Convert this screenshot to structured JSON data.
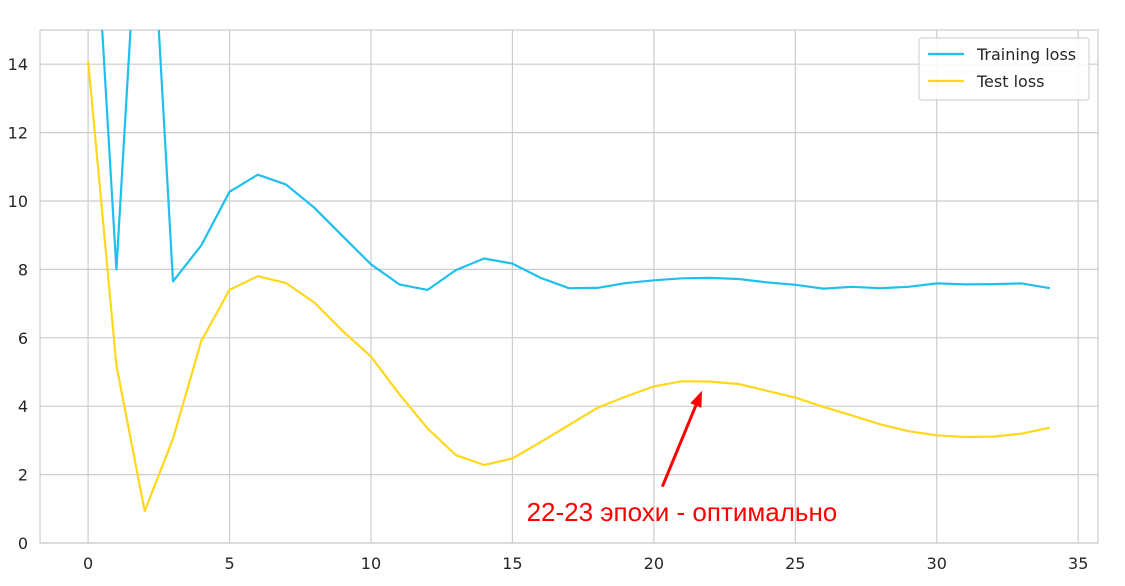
{
  "chart_data": {
    "type": "line",
    "title": "",
    "xlabel": "",
    "ylabel": "",
    "xlim": [
      -1.7,
      35.7
    ],
    "ylim": [
      0,
      15
    ],
    "grid": true,
    "legend_placement": "top-right",
    "x_ticks": [
      0,
      5,
      10,
      15,
      20,
      25,
      30,
      35
    ],
    "y_ticks": [
      0,
      2,
      4,
      6,
      8,
      10,
      12,
      14
    ],
    "x": [
      0,
      1,
      2,
      3,
      4,
      5,
      6,
      7,
      8,
      9,
      10,
      11,
      12,
      13,
      14,
      15,
      16,
      17,
      18,
      19,
      20,
      21,
      22,
      23,
      24,
      25,
      26,
      27,
      28,
      29,
      30,
      31,
      32,
      33,
      34
    ],
    "series": [
      {
        "name": "Training loss",
        "color": "#1fbfef",
        "points": [
          [
            0.3,
            16.0
          ],
          [
            0.5,
            15.0
          ],
          [
            1,
            8.0
          ],
          [
            1.5,
            15.0
          ],
          [
            1.6,
            16.0
          ],
          [
            2.3,
            16.0
          ],
          [
            2.5,
            15.0
          ],
          [
            3,
            7.65
          ],
          [
            4,
            8.7
          ],
          [
            5,
            10.27
          ],
          [
            6,
            10.77
          ],
          [
            7,
            10.48
          ],
          [
            8,
            9.8
          ],
          [
            9,
            8.97
          ],
          [
            10,
            8.15
          ],
          [
            11,
            7.56
          ],
          [
            12,
            7.4
          ],
          [
            13,
            7.98
          ],
          [
            14,
            8.32
          ],
          [
            15,
            8.17
          ],
          [
            16,
            7.75
          ],
          [
            17,
            7.45
          ],
          [
            18,
            7.46
          ],
          [
            19,
            7.6
          ],
          [
            20,
            7.68
          ],
          [
            21,
            7.74
          ],
          [
            22,
            7.75
          ],
          [
            23,
            7.72
          ],
          [
            24,
            7.62
          ],
          [
            25,
            7.55
          ],
          [
            26,
            7.44
          ],
          [
            27,
            7.49
          ],
          [
            28,
            7.45
          ],
          [
            29,
            7.49
          ],
          [
            30,
            7.59
          ],
          [
            31,
            7.56
          ],
          [
            32,
            7.57
          ],
          [
            33,
            7.59
          ],
          [
            34,
            7.45
          ]
        ]
      },
      {
        "name": "Test loss",
        "color": "#ffd81c",
        "points": [
          [
            0,
            14.1
          ],
          [
            1,
            5.2
          ],
          [
            2,
            0.93
          ],
          [
            3,
            3.05
          ],
          [
            4,
            5.9
          ],
          [
            5,
            7.4
          ],
          [
            6,
            7.8
          ],
          [
            7,
            7.6
          ],
          [
            8,
            7.03
          ],
          [
            9,
            6.2
          ],
          [
            10,
            5.45
          ],
          [
            11,
            4.35
          ],
          [
            12,
            3.35
          ],
          [
            13,
            2.57
          ],
          [
            14,
            2.28
          ],
          [
            15,
            2.47
          ],
          [
            16,
            2.95
          ],
          [
            17,
            3.45
          ],
          [
            18,
            3.95
          ],
          [
            19,
            4.28
          ],
          [
            20,
            4.58
          ],
          [
            21,
            4.73
          ],
          [
            22,
            4.72
          ],
          [
            23,
            4.65
          ],
          [
            24,
            4.45
          ],
          [
            25,
            4.25
          ],
          [
            26,
            3.98
          ],
          [
            27,
            3.73
          ],
          [
            28,
            3.47
          ],
          [
            29,
            3.27
          ],
          [
            30,
            3.15
          ],
          [
            31,
            3.1
          ],
          [
            32,
            3.11
          ],
          [
            33,
            3.2
          ],
          [
            34,
            3.37
          ]
        ]
      }
    ],
    "annotation": {
      "text": "22-23 эпохи - оптимально",
      "color": "#ff0000",
      "text_x": 15.5,
      "text_y": 0.9,
      "arrow_from": [
        20.3,
        1.65
      ],
      "arrow_to": [
        21.7,
        4.45
      ]
    }
  }
}
